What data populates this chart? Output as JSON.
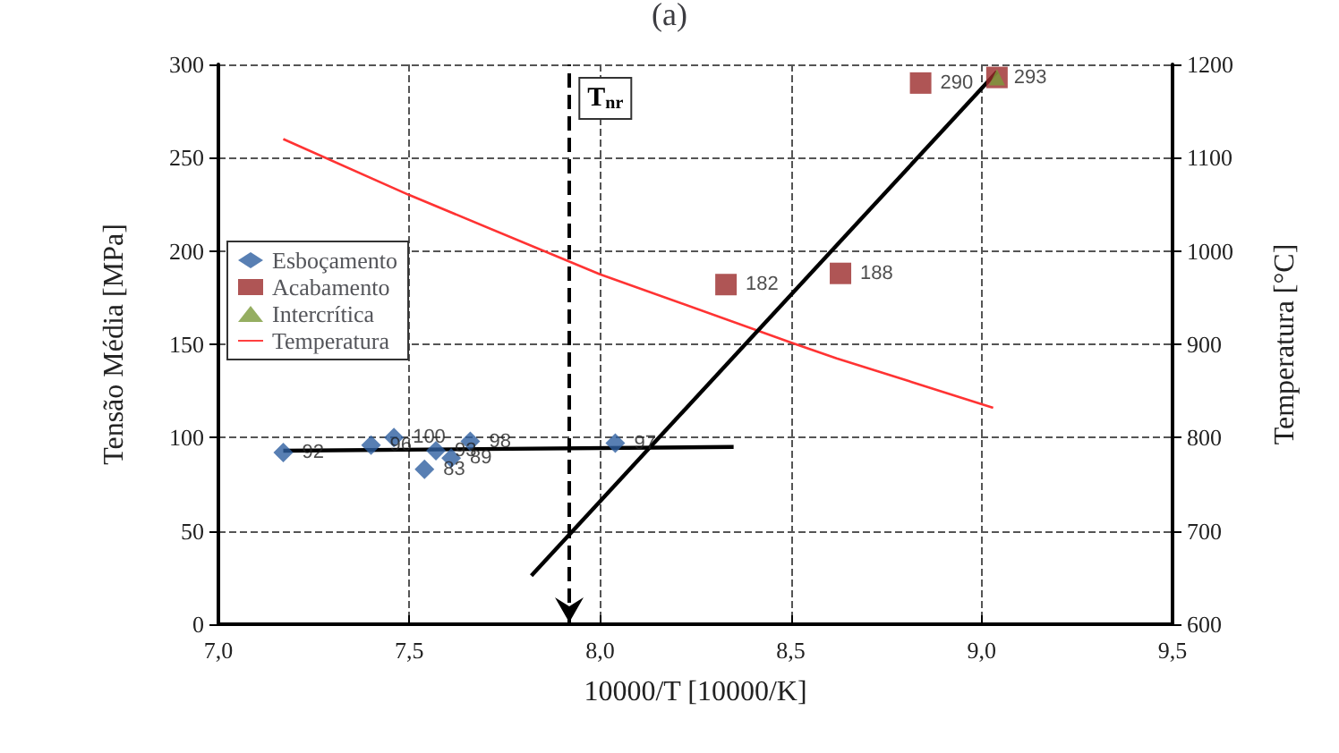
{
  "chart_data": {
    "type": "scatter",
    "title": "(a)",
    "xlabel": "10000/T [10000/K]",
    "ylabel": "Tensão Média [MPa]",
    "y2label": "Temperatura [°C]",
    "xlim": [
      7.0,
      9.5
    ],
    "xticks": [
      {
        "value": 7.0,
        "label": "7,0"
      },
      {
        "value": 7.5,
        "label": "7,5"
      },
      {
        "value": 8.0,
        "label": "8,0"
      },
      {
        "value": 8.5,
        "label": "8,5"
      },
      {
        "value": 9.0,
        "label": "9,0"
      },
      {
        "value": 9.5,
        "label": "9,5"
      }
    ],
    "ylim": [
      0,
      300
    ],
    "yticks": [
      0,
      50,
      100,
      150,
      200,
      250,
      300
    ],
    "y2lim": [
      600,
      1200
    ],
    "y2ticks": [
      600,
      700,
      800,
      900,
      1000,
      1100,
      1200
    ],
    "grid": true,
    "legend": "left",
    "series": [
      {
        "name": "Esboçamento",
        "marker": "diamond",
        "color": "#2e5fa0",
        "x": [
          7.17,
          7.4,
          7.46,
          7.54,
          7.57,
          7.61,
          7.66,
          8.04
        ],
        "values": [
          92,
          96,
          100,
          83,
          93,
          89,
          98,
          97
        ],
        "value_labels": [
          "92",
          "96",
          "100",
          "83",
          "93",
          "89",
          "98",
          "97"
        ]
      },
      {
        "name": "Acabamento",
        "marker": "square",
        "color": "#9b2a2a",
        "x": [
          8.33,
          8.63,
          8.84,
          9.04
        ],
        "values": [
          182,
          188,
          290,
          293
        ],
        "value_labels": [
          "182",
          "188",
          "290",
          null
        ]
      },
      {
        "name": "Intercrítica",
        "marker": "triangle",
        "color": "#7a9a3a",
        "x": [
          9.04
        ],
        "values": [
          293
        ],
        "value_labels": [
          "293"
        ]
      },
      {
        "name": "Temperatura",
        "type": "line",
        "marker": "none",
        "color": "#ff3333",
        "axis": "y2",
        "x": [
          7.17,
          7.5,
          8.0,
          8.5,
          8.62,
          9.03
        ],
        "values": [
          1120,
          1060,
          975,
          902,
          885,
          832
        ]
      },
      {
        "type": "line",
        "marker": "none",
        "color": "#000000",
        "x": [
          7.17,
          8.35
        ],
        "values": [
          93,
          95
        ]
      },
      {
        "type": "line",
        "marker": "none",
        "color": "#000000",
        "x": [
          7.82,
          9.04
        ],
        "values": [
          26,
          296
        ]
      }
    ],
    "ref_lines": [
      {
        "axis": "x",
        "value": 7.92,
        "label": "T$_{nr}$",
        "line_style": "dashed",
        "color": "#000000"
      }
    ]
  }
}
